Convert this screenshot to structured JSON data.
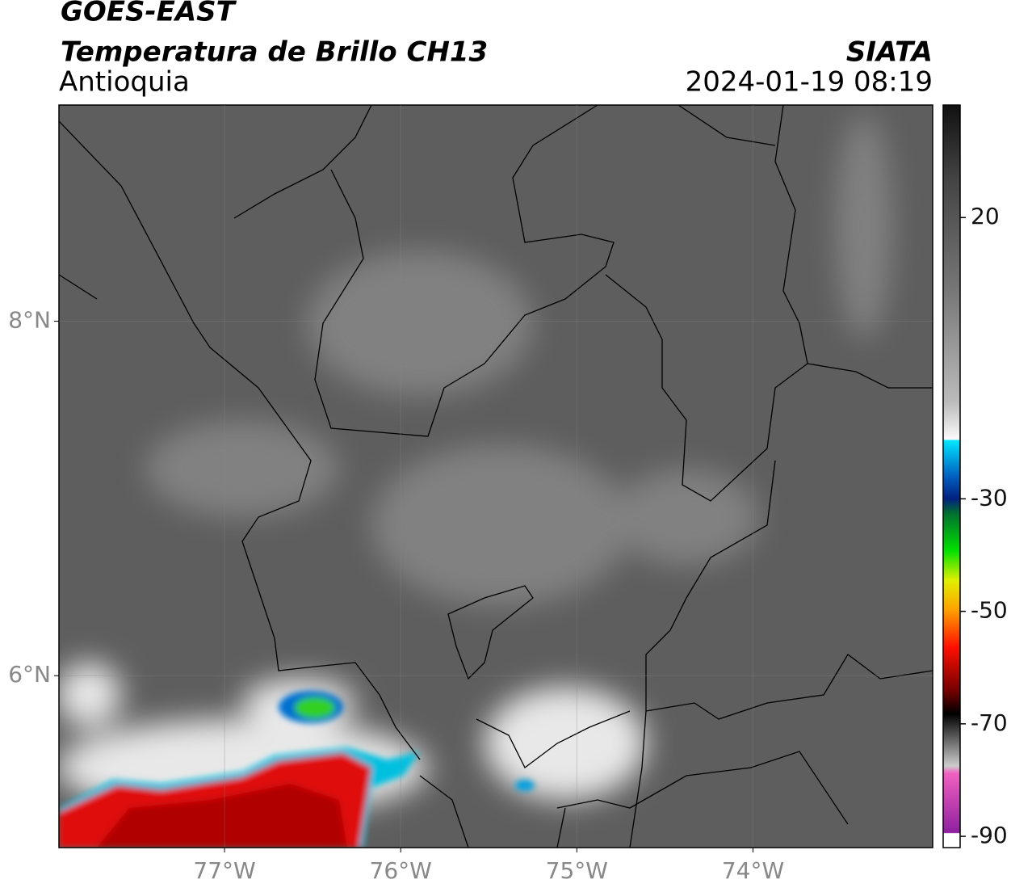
{
  "header": {
    "title": "GOES-EAST",
    "subtitle": "Temperatura de Brillo CH13",
    "region": "Antioquia",
    "source": "SIATA",
    "timestamp": "2024-01-19 08:19"
  },
  "map": {
    "lonlim": [
      -77.94,
      -72.98
    ],
    "latlim": [
      5.03,
      9.22
    ],
    "lonticks": [
      {
        "value": -77,
        "label": "77°W"
      },
      {
        "value": -76,
        "label": "76°W"
      },
      {
        "value": -75,
        "label": "75°W"
      },
      {
        "value": -74,
        "label": "74°W"
      }
    ],
    "latticks": [
      {
        "value": 8,
        "label": "8°N"
      },
      {
        "value": 6,
        "label": "6°N"
      }
    ]
  },
  "colorbar": {
    "lim": [
      -92,
      40
    ],
    "ticks": [
      20,
      -30,
      -50,
      -70,
      -90
    ]
  }
}
